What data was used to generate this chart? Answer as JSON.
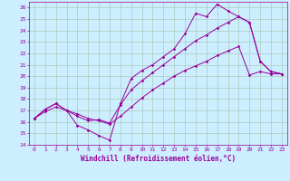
{
  "xlabel": "Windchill (Refroidissement éolien,°C)",
  "background_color": "#cceeff",
  "grid_color": "#aaccbb",
  "line_color": "#990099",
  "xlim": [
    -0.5,
    23.5
  ],
  "ylim": [
    14,
    26.5
  ],
  "xticks": [
    0,
    1,
    2,
    3,
    4,
    5,
    6,
    7,
    8,
    9,
    10,
    11,
    12,
    13,
    14,
    15,
    16,
    17,
    18,
    19,
    20,
    21,
    22,
    23
  ],
  "yticks": [
    14,
    15,
    16,
    17,
    18,
    19,
    20,
    21,
    22,
    23,
    24,
    25,
    26
  ],
  "line1_x": [
    0,
    1,
    2,
    3,
    4,
    5,
    6,
    7,
    8,
    9,
    10,
    11,
    12,
    13,
    14,
    15,
    16,
    17,
    18,
    19,
    20,
    21,
    22,
    23
  ],
  "line1_y": [
    16.3,
    17.1,
    17.6,
    17.0,
    15.7,
    15.3,
    14.8,
    14.4,
    17.6,
    19.8,
    20.5,
    21.0,
    21.7,
    22.4,
    23.7,
    25.5,
    25.2,
    26.3,
    25.7,
    25.2,
    24.7,
    21.3,
    20.4,
    20.2
  ],
  "line2_x": [
    0,
    1,
    2,
    3,
    4,
    5,
    6,
    7,
    8,
    9,
    10,
    11,
    12,
    13,
    14,
    15,
    16,
    17,
    18,
    19,
    20,
    21,
    22,
    23
  ],
  "line2_y": [
    16.3,
    17.1,
    17.6,
    17.0,
    16.5,
    16.1,
    16.2,
    15.9,
    17.5,
    18.8,
    19.6,
    20.3,
    21.0,
    21.7,
    22.4,
    23.1,
    23.6,
    24.2,
    24.7,
    25.2,
    24.7,
    21.3,
    20.4,
    20.2
  ],
  "line3_x": [
    0,
    1,
    2,
    3,
    4,
    5,
    6,
    7,
    8,
    9,
    10,
    11,
    12,
    13,
    14,
    15,
    16,
    17,
    18,
    19,
    20,
    21,
    22,
    23
  ],
  "line3_y": [
    16.3,
    16.9,
    17.3,
    17.0,
    16.7,
    16.3,
    16.1,
    15.8,
    16.5,
    17.3,
    18.1,
    18.8,
    19.4,
    20.0,
    20.5,
    20.9,
    21.3,
    21.8,
    22.2,
    22.6,
    20.1,
    20.4,
    20.2,
    20.2
  ],
  "tick_fontsize": 4.5,
  "xlabel_fontsize": 5.5,
  "marker_size": 1.8,
  "line_width": 0.7
}
